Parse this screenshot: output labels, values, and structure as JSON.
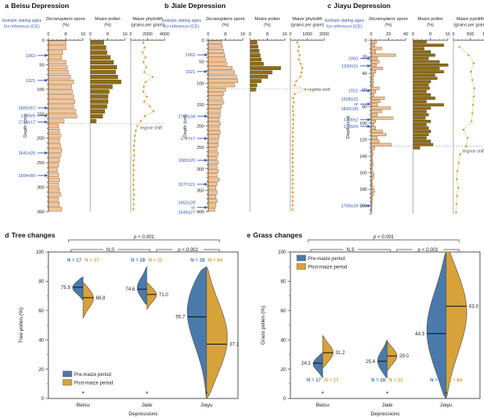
{
  "colors": {
    "spore_bar_fill": "#f2c59c",
    "spore_bar_stroke": "#8d6434",
    "maize_bar_fill": "#8f6d16",
    "maize_bar_stroke": "#5c460e",
    "phytolith_dot": "#c9961e",
    "phytolith_line": "#dcc189",
    "dating_text": "#3a56b0",
    "axis": "#333333",
    "grayline": "#8a8a8a",
    "regime_line": "#9a9a9a",
    "pre_maize": "#4a7aab",
    "post_maize": "#d8a23a"
  },
  "chart_data": [
    {
      "kind": "strat",
      "type": "bar",
      "label": "a",
      "title": "Beisu Depression",
      "dating_header": "Isotopic dating ages\nfor reference (CE)",
      "depth_axis": {
        "label": "Depth (cm)",
        "max": 350,
        "major": 50,
        "minor": 10
      },
      "dates": [
        {
          "label": "1963",
          "depth": 31
        },
        {
          "label": "1921",
          "depth": 82
        },
        {
          "label": "1865±57",
          "depth": 138
        },
        {
          "label": "1789±6",
          "depth": 154
        },
        {
          "label": "1710±17",
          "depth": 167
        },
        {
          "label": "1641±25",
          "depth": 230
        },
        {
          "label": "1564±80",
          "depth": 276
        }
      ],
      "regime_shift": {
        "depth": 170,
        "label": "regime shift"
      },
      "columns": [
        {
          "italic_prefix": "Dicranopteris",
          "rest": " spore",
          "unit": "(%)",
          "style": "bar-light",
          "max": 16,
          "ticks": [
            0,
            8,
            16
          ],
          "start": 5,
          "step": 10,
          "values": [
            8,
            8,
            6.5,
            6,
            8,
            8.5,
            9,
            10,
            11.5,
            10.5,
            11,
            11.5,
            12,
            11.5,
            12.5,
            13,
            7,
            4.5,
            5,
            5.5,
            5,
            5.5,
            6,
            5.5,
            5,
            4.5,
            4,
            4.5,
            5,
            4.5,
            5,
            5.5,
            4.5,
            5,
            6
          ]
        },
        {
          "italic_prefix": "",
          "rest": "Maize pollen",
          "unit": "(%)",
          "style": "bar-dark",
          "max": 16,
          "ticks": [
            0,
            8,
            16
          ],
          "start": 5,
          "step": 10,
          "values": [
            6,
            7,
            7.5,
            9,
            10.5,
            12,
            11.5,
            12.5,
            14,
            10,
            8.5,
            8,
            8,
            7.5,
            6.5,
            5.5,
            2.5,
            0,
            0,
            0,
            0,
            0,
            0,
            0,
            0,
            0,
            0,
            0,
            0,
            0,
            0,
            0,
            0,
            0,
            0
          ]
        },
        {
          "italic_prefix": "",
          "rest": "Maize phytolith",
          "unit": "(grains per gram)",
          "style": "dots",
          "max": 4000,
          "ticks": [
            0,
            2000,
            4000
          ],
          "start": 5,
          "step": 10,
          "values": [
            1500,
            1650,
            1400,
            1750,
            1500,
            1850,
            1600,
            2600,
            1750,
            1550,
            1500,
            1900,
            1600,
            2250,
            2700,
            1700,
            1200,
            800,
            600,
            500,
            450,
            400,
            380,
            420,
            360,
            330,
            360,
            320,
            350,
            310,
            360,
            400,
            320,
            350,
            310
          ]
        }
      ]
    },
    {
      "kind": "strat",
      "type": "bar",
      "label": "b",
      "title": "Jiale Depression",
      "dating_header": "Isotopic dating ages\nfor reference (CE)",
      "depth_axis": {
        "label": "Depth (cm)",
        "max": 400,
        "major": 50,
        "minor": 10
      },
      "dates": [
        {
          "label": "1963",
          "depth": 34
        },
        {
          "label": "1921",
          "depth": 73
        },
        {
          "label": "1769±34",
          "depth": 177
        },
        {
          "label": "1747±7",
          "depth": 229
        },
        {
          "label": "1680±20",
          "depth": 280
        },
        {
          "label": "1677±21",
          "depth": 336
        },
        {
          "label": "1652±28\nor\n1549±27",
          "depth": 390
        }
      ],
      "regime_shift": {
        "depth": 113,
        "label": "regime shift"
      },
      "columns": [
        {
          "italic_prefix": "Dicranopteris",
          "rest": " spore",
          "unit": "(%)",
          "style": "bar-light",
          "max": 16,
          "ticks": [
            0,
            8,
            16
          ],
          "start": 5,
          "step": 10,
          "values": [
            6,
            6.5,
            7,
            7.5,
            8,
            8.5,
            11,
            12,
            13,
            13.5,
            12,
            8,
            7,
            6.5,
            7,
            6,
            5.5,
            5.5,
            5,
            5.5,
            5,
            5.5,
            5,
            4.5,
            4.5,
            4,
            4.5,
            4,
            4.5,
            4,
            4.5,
            4,
            5,
            4,
            3.5,
            4,
            3.5,
            4,
            3.5,
            3
          ]
        },
        {
          "italic_prefix": "",
          "rest": "Maize pollen",
          "unit": "(%)",
          "style": "bar-dark",
          "max": 16,
          "ticks": [
            0,
            8,
            16
          ],
          "start": 5,
          "step": 10,
          "values": [
            3,
            3.5,
            4,
            4.5,
            5,
            6,
            14,
            10,
            8,
            5,
            3,
            2.5,
            0,
            0,
            0,
            0,
            0,
            0,
            0,
            0,
            0,
            0,
            0,
            0,
            0,
            0,
            0,
            0,
            0,
            0,
            0,
            0,
            0,
            0,
            0,
            0,
            0,
            0,
            0,
            0
          ]
        },
        {
          "italic_prefix": "",
          "rest": "Maize phytolith",
          "unit": "(grains per gram)",
          "style": "dots",
          "max": 2000,
          "ticks": [
            0,
            1000,
            2000
          ],
          "start": 5,
          "step": 10,
          "values": [
            400,
            500,
            450,
            550,
            500,
            600,
            700,
            650,
            600,
            350,
            250,
            900,
            250,
            150,
            200,
            150,
            150,
            180,
            150,
            160,
            150,
            140,
            150,
            140,
            130,
            140,
            130,
            140,
            130,
            140,
            130,
            140,
            130,
            140,
            130,
            140,
            130,
            140,
            130,
            130
          ]
        }
      ]
    },
    {
      "kind": "strat",
      "type": "bar",
      "label": "c",
      "title": "Jiayu Depression",
      "dating_header": "Isotopic dating ages\nfor reference (CE)",
      "depth_axis": {
        "label": "Depth (cm)",
        "max": 210,
        "major": 20,
        "minor": 5
      },
      "dates": [
        {
          "label": "1963",
          "depth": 22
        },
        {
          "label": "1939±11",
          "depth": 31
        },
        {
          "label": "1921",
          "depth": 61
        },
        {
          "label": "1928±22\nor\n1892±30",
          "depth": 77
        },
        {
          "label": "1790±2",
          "depth": 96
        },
        {
          "label": "1789±9",
          "depth": 104
        },
        {
          "label": "1769±34",
          "depth": 200
        }
      ],
      "regime_shift": {
        "depth": 128,
        "label": "regime shift"
      },
      "columns": [
        {
          "italic_prefix": "Dicranopteris",
          "rest": " spore",
          "unit": "(%)",
          "style": "bar-light",
          "max": 40,
          "ticks": [
            0,
            20,
            40
          ],
          "start": 2,
          "step": 4,
          "values": [
            6,
            4,
            12,
            5,
            28,
            7,
            9,
            6,
            13,
            5,
            3,
            2,
            2.5,
            2,
            9,
            5,
            3,
            15,
            10,
            7,
            22,
            12,
            7,
            25,
            5,
            3,
            5,
            13,
            17,
            7,
            9,
            23,
            4,
            1.5,
            2,
            1,
            1.5,
            2,
            1,
            1.5,
            3,
            2.5,
            1,
            1.5,
            2,
            3.5,
            2.5,
            1.5,
            1,
            0.8,
            0.6,
            0.5
          ]
        },
        {
          "italic_prefix": "",
          "rest": "Maize pollen",
          "unit": "(%)",
          "style": "bar-dark",
          "max": 16,
          "ticks": [
            0,
            8,
            16
          ],
          "start": 2,
          "step": 4,
          "values": [
            6,
            14,
            5,
            8,
            10,
            7,
            12,
            16,
            12,
            14,
            10,
            11,
            8,
            7,
            7.5,
            6,
            8,
            10,
            6,
            14,
            8,
            6,
            7,
            5.5,
            8,
            6,
            7,
            8,
            7,
            6,
            8,
            9,
            3,
            0,
            0,
            0,
            0,
            0,
            0,
            0,
            0,
            0,
            0,
            0,
            0,
            0,
            0,
            0,
            0,
            0,
            0,
            0
          ]
        },
        {
          "italic_prefix": "",
          "rest": "Maize pytolith",
          "unit": "(grains per gram)",
          "style": "dots",
          "max": 1000,
          "ticks": [
            0,
            500,
            1000
          ],
          "start": 8,
          "step": 10,
          "values": [
            180,
            450,
            600,
            520,
            560,
            620,
            600,
            580,
            560,
            540,
            300,
            420,
            380,
            200,
            160,
            120,
            100,
            150,
            110,
            90,
            80
          ]
        }
      ]
    },
    {
      "kind": "violin",
      "type": "violin",
      "label": "d",
      "title": "Tree changes",
      "ylabel": "Tree pollen (%)",
      "xlabel": "Depressions",
      "ylim": [
        0,
        100
      ],
      "yticks": [
        0,
        20,
        40,
        60,
        80,
        100
      ],
      "brackets": {
        "outer": "p < 0.001",
        "left": "N.S",
        "right": "p < 0.001"
      },
      "legend": {
        "pre": "Pre-maize period",
        "post": "Post-maize period",
        "position": "bottom-left"
      },
      "n_position": "top",
      "star": "*",
      "groups": [
        {
          "name": "Beisu",
          "pre": {
            "n_label": "N = 17",
            "median": 75.9,
            "min": 67,
            "max": 83,
            "mode": 76,
            "width_hint": 13
          },
          "post": {
            "n_label": "N = 17",
            "median": 68.8,
            "min": 55,
            "max": 79,
            "mode": 69,
            "width_hint": 13
          }
        },
        {
          "name": "Jiale",
          "pre": {
            "n_label": "N = 28",
            "median": 74.6,
            "min": 64,
            "max": 90,
            "mode": 75,
            "width_hint": 12
          },
          "post": {
            "n_label": "N = 11",
            "median": 71.0,
            "min": 61,
            "max": 79,
            "mode": 71,
            "width_hint": 12
          }
        },
        {
          "name": "Jiayu",
          "pre": {
            "n_label": "N = 38",
            "median": 55.7,
            "min": 0,
            "max": 90,
            "mode": 66,
            "width_hint": 26
          },
          "post": {
            "n_label": "N = 64",
            "median": 37.1,
            "min": 0,
            "max": 90,
            "mode": 40,
            "width_hint": 26
          }
        }
      ]
    },
    {
      "kind": "violin",
      "type": "violin",
      "label": "e",
      "title": "Grass changes",
      "ylabel": "Grass pollen (%)",
      "xlabel": "Depressions",
      "ylim": [
        0,
        100
      ],
      "yticks": [
        0,
        20,
        40,
        60,
        80,
        100
      ],
      "brackets": {
        "outer": "p < 0.001",
        "left": "N.S",
        "right": "p < 0.001"
      },
      "legend": {
        "pre": "Pre-maize period",
        "post": "Post-maize period",
        "position": "top-left"
      },
      "n_position": "bottom",
      "star": "*",
      "groups": [
        {
          "name": "Beisu",
          "pre": {
            "n_label": "N = 17",
            "median": 24.1,
            "min": 14,
            "max": 31,
            "mode": 24,
            "width_hint": 12
          },
          "post": {
            "n_label": "N = 17",
            "median": 31.2,
            "min": 21,
            "max": 43,
            "mode": 31,
            "width_hint": 13
          }
        },
        {
          "name": "Jiale",
          "pre": {
            "n_label": "N = 28",
            "median": 25.4,
            "min": 14,
            "max": 40,
            "mode": 25,
            "width_hint": 12
          },
          "post": {
            "n_label": "N = 11",
            "median": 29.0,
            "min": 19,
            "max": 39,
            "mode": 29,
            "width_hint": 12
          }
        },
        {
          "name": "Jiayu",
          "pre": {
            "n_label": "N = 38",
            "median": 44.3,
            "min": 0,
            "max": 100,
            "mode": 45,
            "width_hint": 24
          },
          "post": {
            "n_label": "N = 64",
            "median": 63.0,
            "min": 0,
            "max": 103,
            "mode": 62,
            "width_hint": 26
          }
        }
      ]
    }
  ]
}
